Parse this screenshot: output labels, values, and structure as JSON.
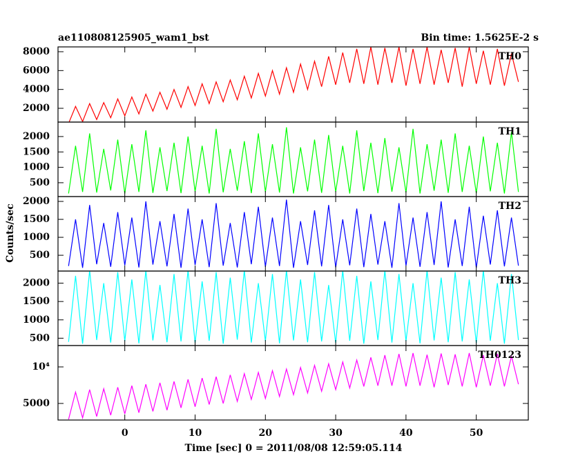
{
  "chart_data": [
    {
      "type": "line",
      "title": "ae110808125905_wam1_bst",
      "subtitle": "Bin time: 1.5625E-2 s",
      "x": [
        -8,
        -7,
        -6,
        -5,
        -4,
        -3,
        -2,
        -1,
        0,
        1,
        2,
        3,
        4,
        5,
        6,
        7,
        8,
        9,
        10,
        11,
        12,
        13,
        14,
        15,
        16,
        17,
        18,
        19,
        20,
        21,
        22,
        23,
        24,
        25,
        26,
        27,
        28,
        29,
        30,
        31,
        32,
        33,
        34,
        35,
        36,
        37,
        38,
        39,
        40,
        41,
        42,
        43,
        44,
        45,
        46,
        47,
        48,
        49,
        50,
        51,
        52,
        53,
        54,
        55,
        56
      ],
      "xlim": [
        -9.5,
        57.4
      ],
      "xticks": [
        0,
        10,
        20,
        30,
        40,
        50
      ],
      "ylim": [
        540,
        8510
      ],
      "yticks": [
        2000,
        4000,
        6000,
        8000
      ],
      "series": [
        {
          "name": "TH0",
          "color": "#ff0000",
          "values": [
            400,
            2200,
            600,
            2500,
            800,
            2600,
            1000,
            3000,
            1200,
            3200,
            1400,
            3500,
            1700,
            3700,
            1900,
            4000,
            2100,
            4300,
            2300,
            4600,
            2500,
            4800,
            2700,
            5000,
            2900,
            5400,
            3100,
            5700,
            3300,
            6000,
            3500,
            6300,
            3700,
            6700,
            4000,
            7000,
            4300,
            7500,
            4500,
            7900,
            4700,
            8300,
            4600,
            8500,
            4500,
            8400,
            4700,
            8500,
            4400,
            8300,
            4600,
            8500,
            4500,
            8200,
            4700,
            8400,
            4300,
            8500,
            4600,
            8100,
            4500,
            8300,
            4400,
            7800,
            4800
          ]
        }
      ]
    },
    {
      "type": "line",
      "x": [
        -8,
        -7,
        -6,
        -5,
        -4,
        -3,
        -2,
        -1,
        0,
        1,
        2,
        3,
        4,
        5,
        6,
        7,
        8,
        9,
        10,
        11,
        12,
        13,
        14,
        15,
        16,
        17,
        18,
        19,
        20,
        21,
        22,
        23,
        24,
        25,
        26,
        27,
        28,
        29,
        30,
        31,
        32,
        33,
        34,
        35,
        36,
        37,
        38,
        39,
        40,
        41,
        42,
        43,
        44,
        45,
        46,
        47,
        48,
        49,
        50,
        51,
        52,
        53,
        54,
        55,
        56
      ],
      "xlim": [
        -9.5,
        57.4
      ],
      "xticks": [
        0,
        10,
        20,
        30,
        40,
        50
      ],
      "ylim": [
        50,
        2470
      ],
      "yticks": [
        500,
        1000,
        1500,
        2000
      ],
      "series": [
        {
          "name": "TH1",
          "color": "#00ff00",
          "values": [
            150,
            1700,
            200,
            2100,
            180,
            1600,
            250,
            1900,
            150,
            1750,
            200,
            2200,
            170,
            1650,
            230,
            1800,
            160,
            2000,
            210,
            1700,
            150,
            2250,
            190,
            1600,
            240,
            1850,
            160,
            2100,
            200,
            1750,
            180,
            2300,
            150,
            1650,
            220,
            1900,
            170,
            2050,
            200,
            1700,
            150,
            2200,
            230,
            1800,
            160,
            1950,
            210,
            1650,
            180,
            2250,
            150,
            1750,
            240,
            1900,
            170,
            2100,
            200,
            1700,
            160,
            2000,
            220,
            1800,
            150,
            2150,
            200
          ]
        }
      ]
    },
    {
      "type": "line",
      "ylabel": "Counts/sec",
      "x": [
        -8,
        -7,
        -6,
        -5,
        -4,
        -3,
        -2,
        -1,
        0,
        1,
        2,
        3,
        4,
        5,
        6,
        7,
        8,
        9,
        10,
        11,
        12,
        13,
        14,
        15,
        16,
        17,
        18,
        19,
        20,
        21,
        22,
        23,
        24,
        25,
        26,
        27,
        28,
        29,
        30,
        31,
        32,
        33,
        34,
        35,
        36,
        37,
        38,
        39,
        40,
        41,
        42,
        43,
        44,
        45,
        46,
        47,
        48,
        49,
        50,
        51,
        52,
        53,
        54,
        55,
        56
      ],
      "xlim": [
        -9.5,
        57.4
      ],
      "xticks": [
        0,
        10,
        20,
        30,
        40,
        50
      ],
      "ylim": [
        60,
        2135
      ],
      "yticks": [
        500,
        1000,
        1500,
        2000
      ],
      "series": [
        {
          "name": "TH2",
          "color": "#0000ff",
          "values": [
            200,
            1500,
            150,
            1900,
            250,
            1400,
            180,
            1700,
            220,
            1550,
            160,
            2000,
            240,
            1450,
            190,
            1650,
            150,
            1800,
            230,
            1500,
            170,
            1950,
            210,
            1400,
            160,
            1700,
            250,
            1850,
            180,
            1550,
            200,
            2050,
            150,
            1450,
            230,
            1750,
            190,
            1900,
            160,
            1500,
            220,
            1800,
            170,
            1650,
            240,
            1450,
            150,
            1950,
            210,
            1550,
            180,
            1700,
            230,
            2000,
            160,
            1500,
            200,
            1850,
            150,
            1600,
            240,
            1750,
            190,
            1550,
            210
          ]
        }
      ]
    },
    {
      "type": "line",
      "x": [
        -8,
        -7,
        -6,
        -5,
        -4,
        -3,
        -2,
        -1,
        0,
        1,
        2,
        3,
        4,
        5,
        6,
        7,
        8,
        9,
        10,
        11,
        12,
        13,
        14,
        15,
        16,
        17,
        18,
        19,
        20,
        21,
        22,
        23,
        24,
        25,
        26,
        27,
        28,
        29,
        30,
        31,
        32,
        33,
        34,
        35,
        36,
        37,
        38,
        39,
        40,
        41,
        42,
        43,
        44,
        45,
        46,
        47,
        48,
        49,
        50,
        51,
        52,
        53,
        54,
        55,
        56
      ],
      "xlim": [
        -9.5,
        57.4
      ],
      "xticks": [
        0,
        10,
        20,
        30,
        40,
        50
      ],
      "ylim": [
        300,
        2330
      ],
      "yticks": [
        500,
        1000,
        1500,
        2000
      ],
      "series": [
        {
          "name": "TH3",
          "color": "#00ffff",
          "values": [
            400,
            2200,
            350,
            2350,
            450,
            2000,
            380,
            2300,
            420,
            2100,
            360,
            2350,
            440,
            1950,
            390,
            2250,
            410,
            2350,
            370,
            2050,
            430,
            2300,
            350,
            2150,
            460,
            2350,
            380,
            2000,
            420,
            2250,
            360,
            2350,
            440,
            2100,
            390,
            2300,
            410,
            1950,
            370,
            2350,
            430,
            2200,
            350,
            2050,
            450,
            2350,
            380,
            2250,
            420,
            2000,
            360,
            2350,
            440,
            2150,
            390,
            2300,
            410,
            2100,
            370,
            2350,
            430,
            2000,
            350,
            2250,
            450
          ]
        }
      ]
    },
    {
      "type": "line",
      "xlabel": "Time [sec] 0 = 2011/08/08 12:59:05.114",
      "log": true,
      "x": [
        -8,
        -7,
        -6,
        -5,
        -4,
        -3,
        -2,
        -1,
        0,
        1,
        2,
        3,
        4,
        5,
        6,
        7,
        8,
        9,
        10,
        11,
        12,
        13,
        14,
        15,
        16,
        17,
        18,
        19,
        20,
        21,
        22,
        23,
        24,
        25,
        26,
        27,
        28,
        29,
        30,
        31,
        32,
        33,
        34,
        35,
        36,
        37,
        38,
        39,
        40,
        41,
        42,
        43,
        44,
        45,
        46,
        47,
        48,
        49,
        50,
        51,
        52,
        53,
        54,
        55,
        56
      ],
      "xlim": [
        -9.5,
        57.4
      ],
      "xticks": [
        0,
        10,
        20,
        30,
        40,
        50
      ],
      "ylim": [
        3650,
        15000
      ],
      "yticks": [
        5000,
        {
          "value": 10000,
          "label": "10⁴"
        }
      ],
      "series": [
        {
          "name": "TH0123",
          "color": "#ff00ff",
          "values": [
            3700,
            6200,
            3800,
            6500,
            3900,
            6600,
            4000,
            6800,
            4100,
            7000,
            4200,
            7200,
            4300,
            7400,
            4400,
            7600,
            4600,
            7900,
            4700,
            8100,
            4900,
            8300,
            5000,
            8600,
            5200,
            8800,
            5400,
            9000,
            5500,
            9300,
            5700,
            9600,
            5900,
            9900,
            6100,
            10300,
            6300,
            10600,
            6500,
            11000,
            6700,
            11400,
            6900,
            12000,
            7000,
            12500,
            7000,
            12800,
            6900,
            13000,
            7000,
            12600,
            6800,
            12900,
            7100,
            12700,
            6900,
            13000,
            6800,
            12500,
            7000,
            12800,
            6900,
            12300,
            7200
          ]
        }
      ]
    }
  ]
}
